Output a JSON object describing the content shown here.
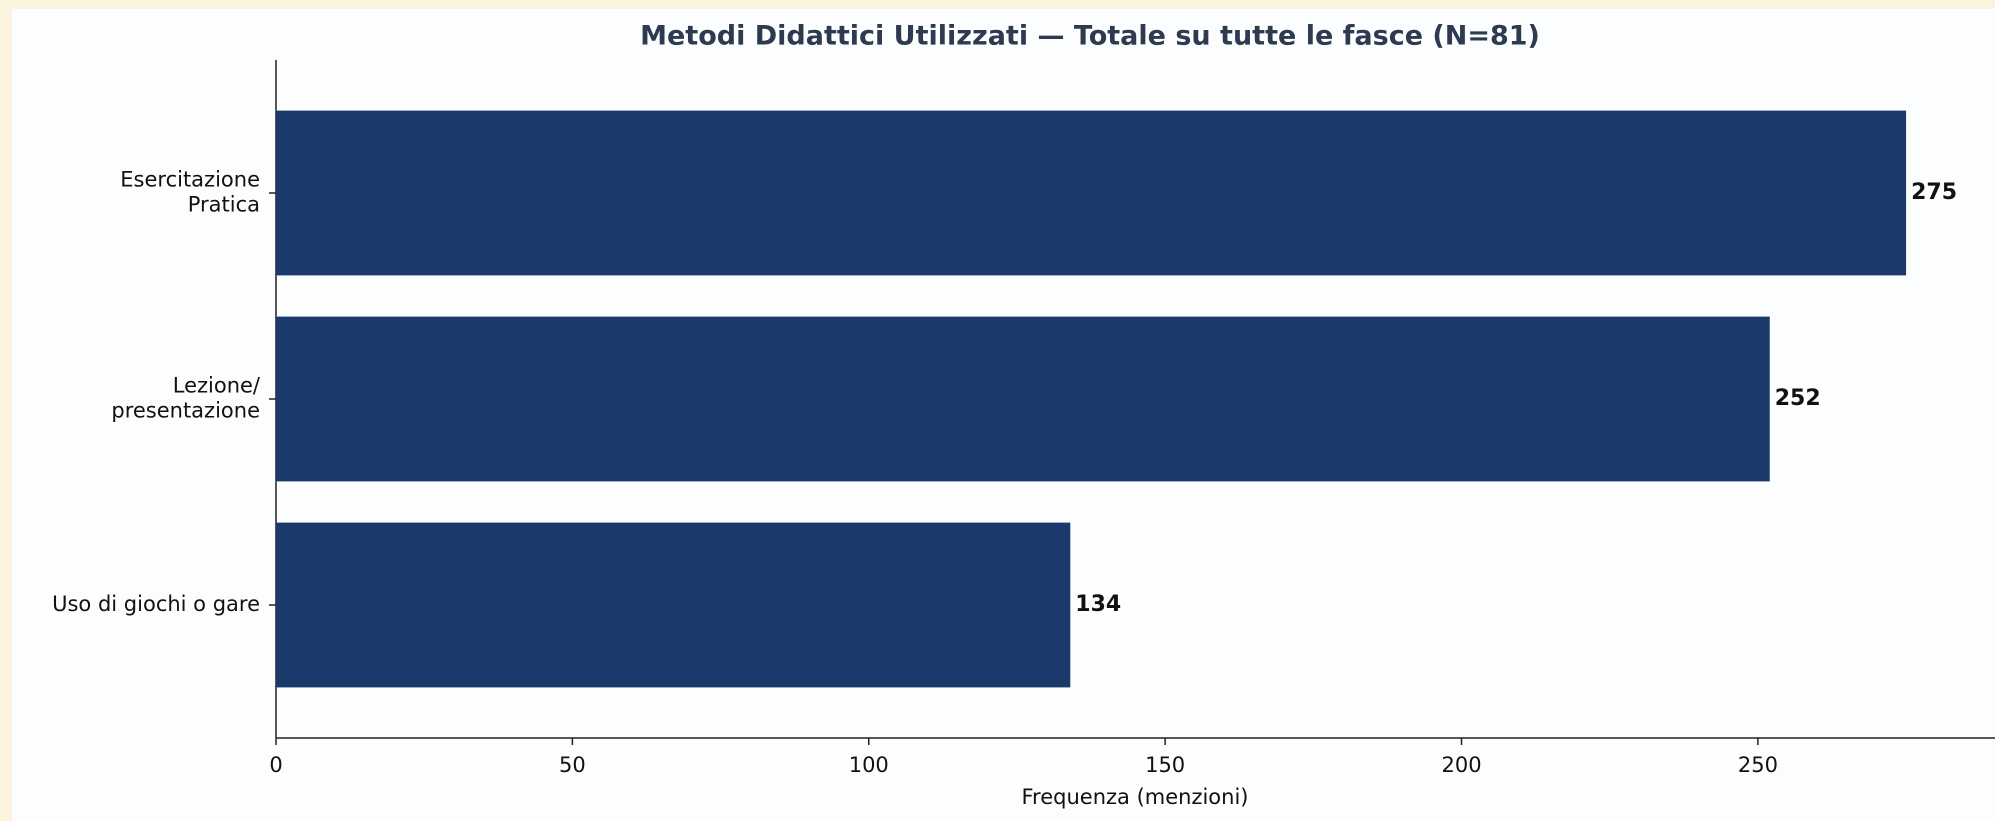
{
  "chart_data": {
    "type": "hbar",
    "title": "Metodi Didattici Utilizzati — Totale su tutte le fasce (N=81)",
    "x_label": "Frequenza (menzioni)",
    "categories": [
      "Esercitazione\nPratica",
      "Lezione/\npresentazione",
      "Uso di giochi o gare"
    ],
    "values": [
      275,
      252,
      134
    ],
    "color": "#1b3a6b",
    "xlim": [
      0,
      290
    ],
    "xticks": [
      0,
      50,
      100,
      150,
      200,
      250
    ]
  }
}
